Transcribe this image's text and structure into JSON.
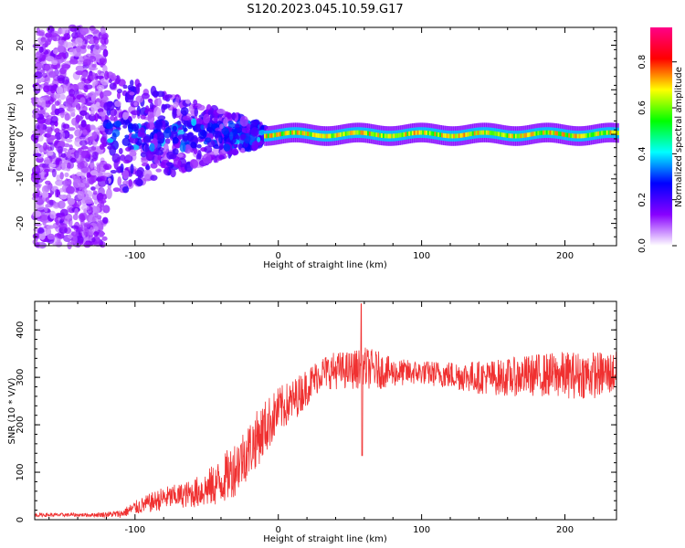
{
  "title": "S120.2023.045.10.59.G17",
  "colors": {
    "snr_line": "#f03030",
    "background": "#ffffff",
    "axes": "#000000"
  },
  "chart_data": [
    {
      "type": "heatmap",
      "title": "",
      "xlabel": "Height of straight line (km)",
      "ylabel": "Frequency (Hz)",
      "xlim": [
        -170,
        236
      ],
      "ylim": [
        -25,
        24
      ],
      "xticks": [
        -100,
        0,
        100,
        200
      ],
      "xtick_labels": [
        "-100",
        "0",
        "100",
        "200"
      ],
      "yticks": [
        -20,
        -10,
        0,
        10,
        20
      ],
      "ytick_labels": [
        "-20",
        "-10",
        "0",
        "10",
        "20"
      ],
      "colorbar": {
        "label": "Normalized spectral amplitude",
        "range": [
          0,
          0.95
        ],
        "ticks": [
          0,
          0.2,
          0.4,
          0.6,
          0.8
        ],
        "tick_labels": [
          "0.0",
          "0.2",
          "0.4",
          "0.6",
          "0.8"
        ],
        "colormap": [
          "#ffffff",
          "#8800ff",
          "#0000ff",
          "#00ffff",
          "#00ff00",
          "#ffff00",
          "#ff0000",
          "#ff0088"
        ]
      },
      "features": {
        "scattered_noise_x": [
          -170,
          -120
        ],
        "transition_x": [
          -120,
          -10
        ],
        "coherent_line_x": [
          -10,
          236
        ],
        "coherent_line_frequency": [
          -0.5,
          1.0
        ],
        "coherent_line_amplitude": 0.8
      }
    },
    {
      "type": "line",
      "title": "",
      "xlabel": "Height of straight line (km)",
      "ylabel": "SNR (10 * V/V)",
      "xlim": [
        -170,
        236
      ],
      "ylim": [
        0,
        460
      ],
      "xticks": [
        -100,
        0,
        100,
        200
      ],
      "xtick_labels": [
        "-100",
        "0",
        "100",
        "200"
      ],
      "yticks": [
        0,
        100,
        200,
        300,
        400
      ],
      "ytick_labels": [
        "0",
        "100",
        "200",
        "300",
        "400"
      ],
      "x": [
        -170,
        -150,
        -130,
        -110,
        -100,
        -90,
        -80,
        -70,
        -60,
        -50,
        -40,
        -30,
        -20,
        -10,
        0,
        10,
        20,
        30,
        40,
        50,
        60,
        70,
        80,
        100,
        120,
        140,
        160,
        180,
        200,
        220,
        236
      ],
      "mean": [
        10,
        10,
        10,
        12,
        25,
        35,
        45,
        50,
        55,
        65,
        80,
        110,
        150,
        190,
        230,
        250,
        280,
        310,
        315,
        315,
        320,
        315,
        310,
        310,
        305,
        300,
        300,
        305,
        305,
        305,
        310
      ],
      "spread": [
        4,
        4,
        4,
        8,
        15,
        20,
        25,
        25,
        30,
        40,
        50,
        60,
        60,
        60,
        50,
        45,
        40,
        35,
        40,
        40,
        45,
        40,
        30,
        25,
        30,
        35,
        40,
        45,
        50,
        50,
        45
      ],
      "peak": {
        "x": 58,
        "y": 455
      },
      "dip": {
        "x": 58,
        "y": 135
      }
    }
  ]
}
